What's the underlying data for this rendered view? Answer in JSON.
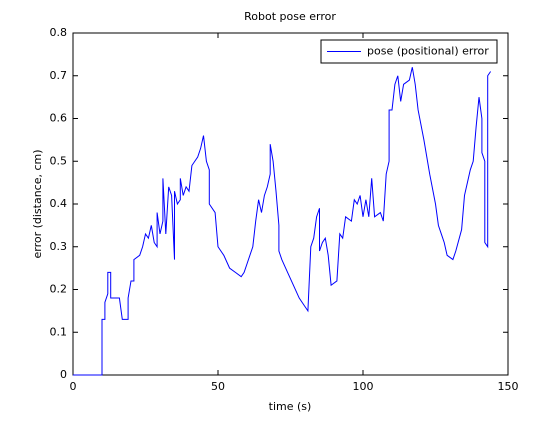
{
  "chart_data": {
    "type": "line",
    "title": "Robot pose error",
    "xlabel": "time (s)",
    "ylabel": "error (distance, cm)",
    "xlim": [
      0,
      150
    ],
    "xticks": [
      0,
      50,
      100,
      150
    ],
    "ylim": [
      0,
      0.8
    ],
    "yticks": [
      0,
      0.1,
      0.2,
      0.3,
      0.4,
      0.5,
      0.6,
      0.7,
      0.8
    ],
    "legend": "upper right",
    "x": [
      0,
      10,
      10,
      11,
      11,
      12,
      12,
      13,
      13,
      16,
      17,
      19,
      19,
      20,
      21,
      21,
      23,
      24,
      25,
      26,
      27,
      28,
      29,
      29,
      30,
      31,
      31,
      32,
      33,
      34,
      35,
      35,
      36,
      37,
      37,
      38,
      39,
      40,
      41,
      42,
      43,
      44,
      45,
      46,
      47,
      47,
      49,
      50,
      52,
      54,
      56,
      58,
      59,
      60,
      62,
      63,
      64,
      65,
      66,
      67,
      68,
      68,
      69,
      70,
      71,
      71,
      72,
      74,
      76,
      78,
      80,
      81,
      82,
      83,
      84,
      85,
      85,
      86,
      87,
      88,
      89,
      91,
      92,
      93,
      94,
      96,
      97,
      98,
      99,
      100,
      101,
      102,
      103,
      104,
      106,
      107,
      108,
      109,
      109,
      110,
      111,
      112,
      113,
      114,
      116,
      117,
      118,
      119,
      121,
      123,
      125,
      126,
      127,
      128,
      129,
      131,
      132,
      134,
      135,
      136,
      137,
      138,
      139,
      140,
      141,
      141,
      142,
      142,
      143,
      143,
      144
    ],
    "series": [
      {
        "name": "pose (positional) error",
        "color": "#0000ff",
        "values": [
          0,
          0,
          0.13,
          0.13,
          0.17,
          0.19,
          0.24,
          0.24,
          0.18,
          0.18,
          0.13,
          0.13,
          0.18,
          0.22,
          0.22,
          0.27,
          0.28,
          0.3,
          0.33,
          0.32,
          0.35,
          0.31,
          0.3,
          0.38,
          0.33,
          0.36,
          0.46,
          0.33,
          0.44,
          0.42,
          0.27,
          0.43,
          0.4,
          0.41,
          0.46,
          0.42,
          0.44,
          0.43,
          0.49,
          0.5,
          0.51,
          0.53,
          0.56,
          0.5,
          0.48,
          0.4,
          0.38,
          0.3,
          0.28,
          0.25,
          0.24,
          0.23,
          0.24,
          0.26,
          0.3,
          0.36,
          0.41,
          0.38,
          0.42,
          0.44,
          0.47,
          0.54,
          0.5,
          0.43,
          0.35,
          0.29,
          0.27,
          0.24,
          0.21,
          0.18,
          0.16,
          0.15,
          0.3,
          0.32,
          0.37,
          0.39,
          0.29,
          0.31,
          0.32,
          0.28,
          0.21,
          0.22,
          0.33,
          0.32,
          0.37,
          0.36,
          0.41,
          0.4,
          0.42,
          0.37,
          0.41,
          0.37,
          0.46,
          0.37,
          0.38,
          0.36,
          0.47,
          0.5,
          0.62,
          0.62,
          0.68,
          0.7,
          0.64,
          0.68,
          0.69,
          0.72,
          0.68,
          0.62,
          0.55,
          0.47,
          0.4,
          0.35,
          0.33,
          0.31,
          0.28,
          0.27,
          0.29,
          0.34,
          0.42,
          0.45,
          0.48,
          0.5,
          0.58,
          0.65,
          0.6,
          0.52,
          0.5,
          0.31,
          0.3,
          0.7,
          0.71
        ]
      }
    ]
  }
}
